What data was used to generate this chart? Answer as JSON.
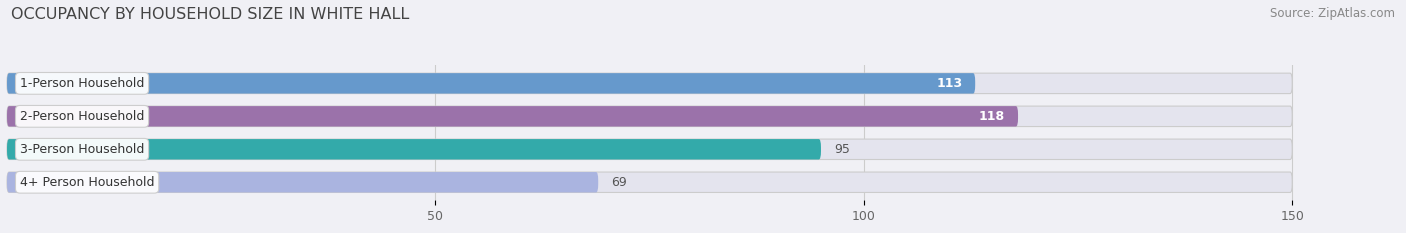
{
  "title": "OCCUPANCY BY HOUSEHOLD SIZE IN WHITE HALL",
  "source": "Source: ZipAtlas.com",
  "categories": [
    "1-Person Household",
    "2-Person Household",
    "3-Person Household",
    "4+ Person Household"
  ],
  "values": [
    113,
    118,
    95,
    69
  ],
  "bar_colors": [
    "#6699cc",
    "#9b72aa",
    "#33aaaa",
    "#aab4e0"
  ],
  "label_colors": [
    "white",
    "white",
    "black",
    "black"
  ],
  "xlim": [
    0,
    160
  ],
  "data_max": 150,
  "xticks": [
    50,
    100,
    150
  ],
  "background_color": "#f0f0f5",
  "bar_bg_color": "#e4e4ee",
  "title_fontsize": 11.5,
  "source_fontsize": 8.5,
  "tick_fontsize": 9,
  "bar_label_fontsize": 9,
  "category_fontsize": 9
}
